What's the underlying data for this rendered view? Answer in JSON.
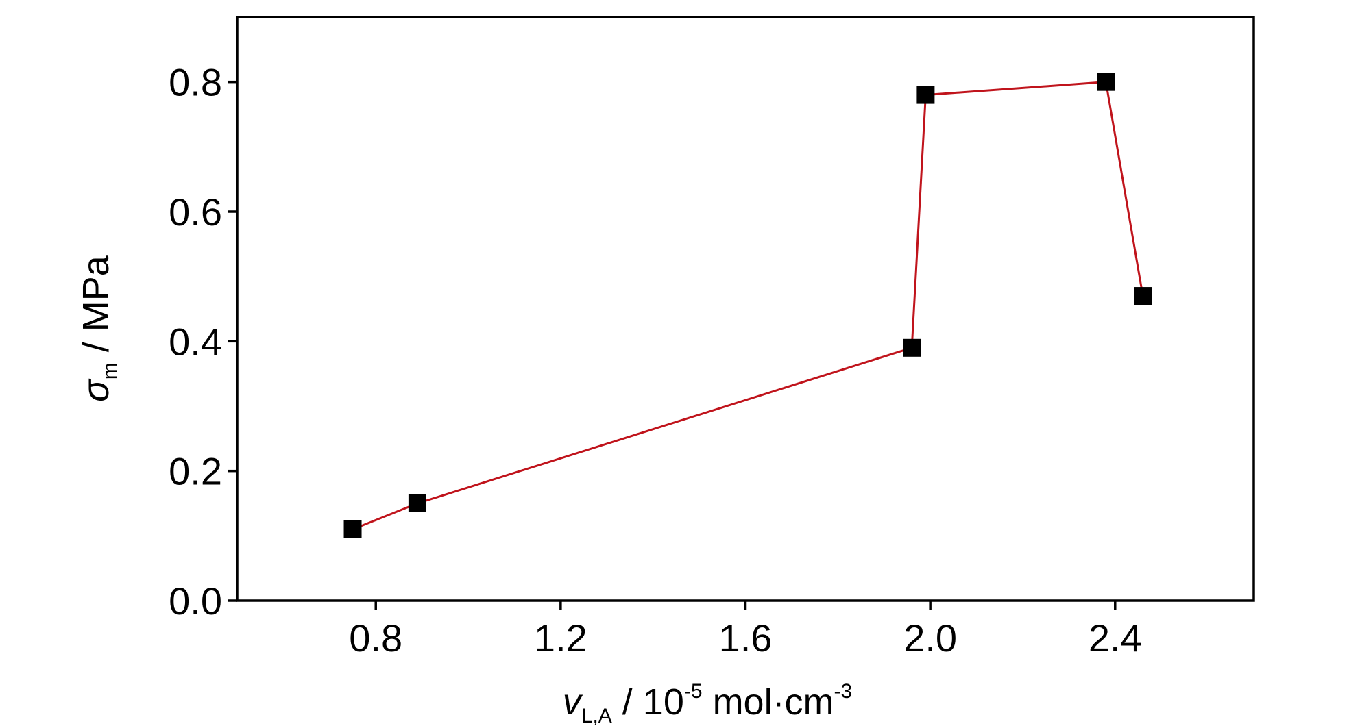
{
  "chart_data": {
    "type": "line",
    "title": "",
    "x_label": {
      "italic_symbol": "v",
      "subscript": "L,A",
      "text_before_exponent": " / 10",
      "exponent": "-5",
      "text_after_exponent": " mol·cm",
      "final_exponent": "-3"
    },
    "y_label": {
      "italic_symbol": "σ",
      "subscript": "m",
      "text": " / MPa"
    },
    "xlim": [
      0.5,
      2.7
    ],
    "ylim": [
      0.0,
      0.9
    ],
    "x_ticks": [
      0.8,
      1.2,
      1.6,
      2.0,
      2.4
    ],
    "x_tick_labels": [
      "0.8",
      "1.2",
      "1.6",
      "2.0",
      "2.4"
    ],
    "y_ticks": [
      0.0,
      0.2,
      0.4,
      0.6,
      0.8
    ],
    "y_tick_labels": [
      "0.0",
      "0.2",
      "0.4",
      "0.6",
      "0.8"
    ],
    "grid": false,
    "legend": "none",
    "series": [
      {
        "x": [
          0.75,
          0.89,
          1.96,
          1.99,
          2.38,
          2.46
        ],
        "y": [
          0.11,
          0.15,
          0.39,
          0.78,
          0.8,
          0.47
        ],
        "line_color": "#c0141c",
        "marker": "square",
        "marker_color": "#000000"
      }
    ]
  }
}
